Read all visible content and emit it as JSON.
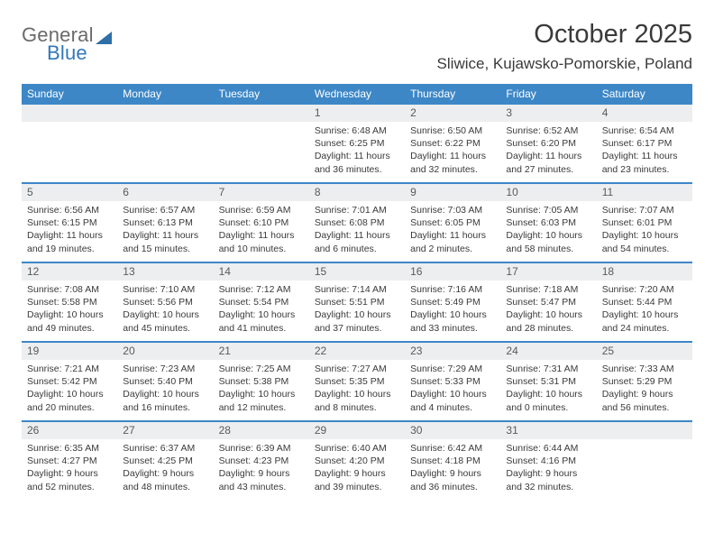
{
  "brand": {
    "part1": "General",
    "part2": "Blue"
  },
  "title": "October 2025",
  "location": "Sliwice, Kujawsko-Pomorskie, Poland",
  "colors": {
    "header_bar": "#3d87c7",
    "daynum_bg": "#eceeef",
    "text": "#3a3a3a",
    "logo_blue": "#3378b9",
    "logo_gray": "#6a6a6a"
  },
  "daysOfWeek": [
    "Sunday",
    "Monday",
    "Tuesday",
    "Wednesday",
    "Thursday",
    "Friday",
    "Saturday"
  ],
  "weeks": [
    [
      {
        "n": "",
        "sr": "",
        "ss": "",
        "dl": ""
      },
      {
        "n": "",
        "sr": "",
        "ss": "",
        "dl": ""
      },
      {
        "n": "",
        "sr": "",
        "ss": "",
        "dl": ""
      },
      {
        "n": "1",
        "sr": "Sunrise: 6:48 AM",
        "ss": "Sunset: 6:25 PM",
        "dl": "Daylight: 11 hours and 36 minutes."
      },
      {
        "n": "2",
        "sr": "Sunrise: 6:50 AM",
        "ss": "Sunset: 6:22 PM",
        "dl": "Daylight: 11 hours and 32 minutes."
      },
      {
        "n": "3",
        "sr": "Sunrise: 6:52 AM",
        "ss": "Sunset: 6:20 PM",
        "dl": "Daylight: 11 hours and 27 minutes."
      },
      {
        "n": "4",
        "sr": "Sunrise: 6:54 AM",
        "ss": "Sunset: 6:17 PM",
        "dl": "Daylight: 11 hours and 23 minutes."
      }
    ],
    [
      {
        "n": "5",
        "sr": "Sunrise: 6:56 AM",
        "ss": "Sunset: 6:15 PM",
        "dl": "Daylight: 11 hours and 19 minutes."
      },
      {
        "n": "6",
        "sr": "Sunrise: 6:57 AM",
        "ss": "Sunset: 6:13 PM",
        "dl": "Daylight: 11 hours and 15 minutes."
      },
      {
        "n": "7",
        "sr": "Sunrise: 6:59 AM",
        "ss": "Sunset: 6:10 PM",
        "dl": "Daylight: 11 hours and 10 minutes."
      },
      {
        "n": "8",
        "sr": "Sunrise: 7:01 AM",
        "ss": "Sunset: 6:08 PM",
        "dl": "Daylight: 11 hours and 6 minutes."
      },
      {
        "n": "9",
        "sr": "Sunrise: 7:03 AM",
        "ss": "Sunset: 6:05 PM",
        "dl": "Daylight: 11 hours and 2 minutes."
      },
      {
        "n": "10",
        "sr": "Sunrise: 7:05 AM",
        "ss": "Sunset: 6:03 PM",
        "dl": "Daylight: 10 hours and 58 minutes."
      },
      {
        "n": "11",
        "sr": "Sunrise: 7:07 AM",
        "ss": "Sunset: 6:01 PM",
        "dl": "Daylight: 10 hours and 54 minutes."
      }
    ],
    [
      {
        "n": "12",
        "sr": "Sunrise: 7:08 AM",
        "ss": "Sunset: 5:58 PM",
        "dl": "Daylight: 10 hours and 49 minutes."
      },
      {
        "n": "13",
        "sr": "Sunrise: 7:10 AM",
        "ss": "Sunset: 5:56 PM",
        "dl": "Daylight: 10 hours and 45 minutes."
      },
      {
        "n": "14",
        "sr": "Sunrise: 7:12 AM",
        "ss": "Sunset: 5:54 PM",
        "dl": "Daylight: 10 hours and 41 minutes."
      },
      {
        "n": "15",
        "sr": "Sunrise: 7:14 AM",
        "ss": "Sunset: 5:51 PM",
        "dl": "Daylight: 10 hours and 37 minutes."
      },
      {
        "n": "16",
        "sr": "Sunrise: 7:16 AM",
        "ss": "Sunset: 5:49 PM",
        "dl": "Daylight: 10 hours and 33 minutes."
      },
      {
        "n": "17",
        "sr": "Sunrise: 7:18 AM",
        "ss": "Sunset: 5:47 PM",
        "dl": "Daylight: 10 hours and 28 minutes."
      },
      {
        "n": "18",
        "sr": "Sunrise: 7:20 AM",
        "ss": "Sunset: 5:44 PM",
        "dl": "Daylight: 10 hours and 24 minutes."
      }
    ],
    [
      {
        "n": "19",
        "sr": "Sunrise: 7:21 AM",
        "ss": "Sunset: 5:42 PM",
        "dl": "Daylight: 10 hours and 20 minutes."
      },
      {
        "n": "20",
        "sr": "Sunrise: 7:23 AM",
        "ss": "Sunset: 5:40 PM",
        "dl": "Daylight: 10 hours and 16 minutes."
      },
      {
        "n": "21",
        "sr": "Sunrise: 7:25 AM",
        "ss": "Sunset: 5:38 PM",
        "dl": "Daylight: 10 hours and 12 minutes."
      },
      {
        "n": "22",
        "sr": "Sunrise: 7:27 AM",
        "ss": "Sunset: 5:35 PM",
        "dl": "Daylight: 10 hours and 8 minutes."
      },
      {
        "n": "23",
        "sr": "Sunrise: 7:29 AM",
        "ss": "Sunset: 5:33 PM",
        "dl": "Daylight: 10 hours and 4 minutes."
      },
      {
        "n": "24",
        "sr": "Sunrise: 7:31 AM",
        "ss": "Sunset: 5:31 PM",
        "dl": "Daylight: 10 hours and 0 minutes."
      },
      {
        "n": "25",
        "sr": "Sunrise: 7:33 AM",
        "ss": "Sunset: 5:29 PM",
        "dl": "Daylight: 9 hours and 56 minutes."
      }
    ],
    [
      {
        "n": "26",
        "sr": "Sunrise: 6:35 AM",
        "ss": "Sunset: 4:27 PM",
        "dl": "Daylight: 9 hours and 52 minutes."
      },
      {
        "n": "27",
        "sr": "Sunrise: 6:37 AM",
        "ss": "Sunset: 4:25 PM",
        "dl": "Daylight: 9 hours and 48 minutes."
      },
      {
        "n": "28",
        "sr": "Sunrise: 6:39 AM",
        "ss": "Sunset: 4:23 PM",
        "dl": "Daylight: 9 hours and 43 minutes."
      },
      {
        "n": "29",
        "sr": "Sunrise: 6:40 AM",
        "ss": "Sunset: 4:20 PM",
        "dl": "Daylight: 9 hours and 39 minutes."
      },
      {
        "n": "30",
        "sr": "Sunrise: 6:42 AM",
        "ss": "Sunset: 4:18 PM",
        "dl": "Daylight: 9 hours and 36 minutes."
      },
      {
        "n": "31",
        "sr": "Sunrise: 6:44 AM",
        "ss": "Sunset: 4:16 PM",
        "dl": "Daylight: 9 hours and 32 minutes."
      },
      {
        "n": "",
        "sr": "",
        "ss": "",
        "dl": ""
      }
    ]
  ]
}
